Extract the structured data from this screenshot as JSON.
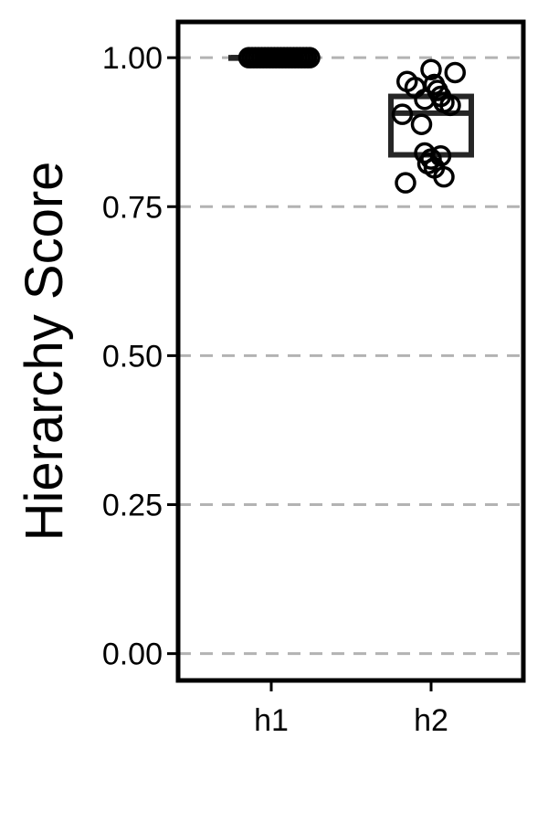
{
  "chart_data": {
    "type": "box",
    "title": "",
    "xlabel": "",
    "ylabel": "Hierarchy Score",
    "ylim": [
      -0.045,
      1.06
    ],
    "yticks": [
      0.0,
      0.25,
      0.5,
      0.75,
      1.0
    ],
    "ytick_labels": [
      "0.00",
      "0.25",
      "0.50",
      "0.75",
      "1.00"
    ],
    "grid": "horizontal dashed",
    "categories": [
      "h1",
      "h2"
    ],
    "boxes": [
      {
        "category": "h1",
        "q1": 1.0,
        "median": 1.0,
        "q3": 1.0,
        "whisker_low": 1.0,
        "whisker_high": 1.0
      },
      {
        "category": "h2",
        "q1": 0.837,
        "median": 0.907,
        "q3": 0.935,
        "whisker_low": 0.837,
        "whisker_high": 0.935
      }
    ],
    "points": [
      {
        "category": "h1",
        "values": [
          1.0,
          1.0,
          1.0,
          1.0,
          1.0,
          1.0,
          1.0,
          1.0,
          1.0,
          1.0,
          1.0,
          1.0,
          1.0,
          1.0,
          1.0,
          1.0,
          1.0,
          1.0,
          1.0,
          1.0
        ],
        "jitter": [
          -0.14,
          -0.1,
          -0.06,
          -0.02,
          0.02,
          0.06,
          0.1,
          0.14,
          0.18,
          -0.12,
          -0.08,
          -0.04,
          0.0,
          0.04,
          0.08,
          0.12,
          0.16,
          0.2,
          0.22,
          0.24
        ]
      },
      {
        "category": "h2",
        "values": [
          0.98,
          0.975,
          0.96,
          0.955,
          0.95,
          0.945,
          0.935,
          0.93,
          0.925,
          0.92,
          0.905,
          0.888,
          0.84,
          0.835,
          0.83,
          0.822,
          0.815,
          0.8,
          0.79
        ],
        "jitter": [
          0.0,
          0.15,
          -0.15,
          0.02,
          -0.1,
          0.04,
          0.06,
          -0.04,
          0.08,
          0.12,
          -0.18,
          -0.06,
          -0.04,
          0.06,
          0.0,
          -0.02,
          0.02,
          0.08,
          -0.16
        ]
      }
    ],
    "colors": {
      "background": "#ffffff",
      "frame": "#000000",
      "grid": "#b3b3b3",
      "box": "#262626",
      "point": "#000000",
      "text": "#000000"
    }
  }
}
